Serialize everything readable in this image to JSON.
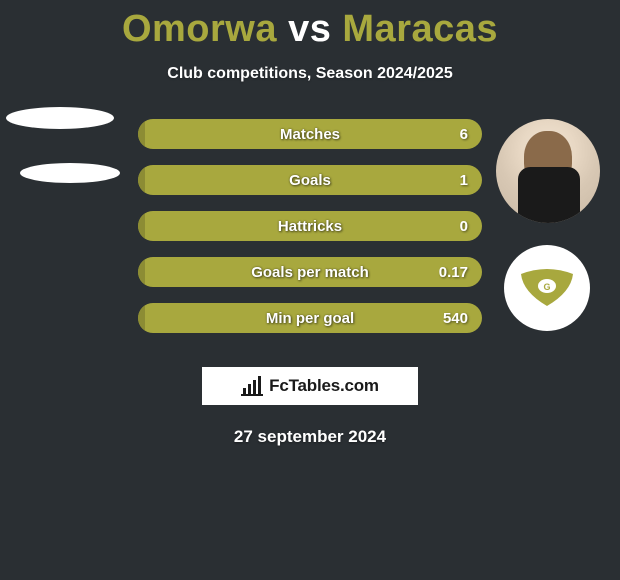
{
  "background_color": "#2a2f33",
  "title": {
    "player_a": "Omorwa",
    "vs": "vs",
    "player_b": "Maracas",
    "color_a": "#a8a83e",
    "color_vs": "#ffffff",
    "color_b": "#a8a83e"
  },
  "subtitle": "Club competitions, Season 2024/2025",
  "stats": {
    "bar_color": "#a8a83e",
    "bar_fill_left_color": "#8c8c34",
    "rows": [
      {
        "label": "Matches",
        "left": "",
        "right": "6",
        "left_fill_pct": 2
      },
      {
        "label": "Goals",
        "left": "",
        "right": "1",
        "left_fill_pct": 2
      },
      {
        "label": "Hattricks",
        "left": "",
        "right": "0",
        "left_fill_pct": 2
      },
      {
        "label": "Goals per match",
        "left": "",
        "right": "0.17",
        "left_fill_pct": 2
      },
      {
        "label": "Min per goal",
        "left": "",
        "right": "540",
        "left_fill_pct": 2
      }
    ]
  },
  "brand": "FcTables.com",
  "date": "27 september 2024",
  "club_badge_color": "#a8a83e"
}
